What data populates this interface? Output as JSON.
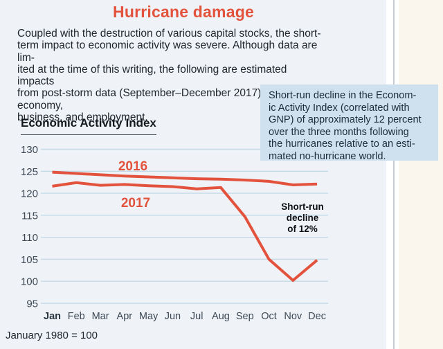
{
  "page": {
    "title": "Hurricane damage",
    "intro": "Coupled with the destruction of various capital stocks, the short-\nterm impact to economic activity was severe. Although data are lim-\nited at the time of this writing, the following are estimated impacts\nfrom post-storm data (September–December 2017) for the economy,\nbusiness, and employment.",
    "footnote": "January 1980 = 100"
  },
  "callout": {
    "text": "Short-run decline in the Econom-\nic Activity Index (correlated with\nGNP) of approximately 12 percent\nover the three months following\nthe hurricanes relative to an esti-\nmated no-hurricane world."
  },
  "colors": {
    "accent": "#e2523c",
    "page_bg": "#eff3f7",
    "cream_bg": "#faf6ee",
    "callout_bg": "#cfe1ee",
    "grid": "#c3d9e8",
    "axis_text": "#3d4854",
    "ink": "#20262c"
  },
  "chart_data": {
    "type": "line",
    "title": "Economic Activity Index",
    "categories": [
      "Jan",
      "Feb",
      "Mar",
      "Apr",
      "May",
      "Jun",
      "Jul",
      "Aug",
      "Sep",
      "Oct",
      "Nov",
      "Dec"
    ],
    "series": [
      {
        "name": "2016",
        "values": [
          124.8,
          124.5,
          124.2,
          123.9,
          123.7,
          123.5,
          123.3,
          123.2,
          123.0,
          122.7,
          121.9,
          122.1
        ]
      },
      {
        "name": "2017",
        "values": [
          121.6,
          122.4,
          121.8,
          122.0,
          121.7,
          121.5,
          121.0,
          121.3,
          114.7,
          105.0,
          100.2,
          104.8
        ]
      }
    ],
    "y_ticks": [
      130,
      125,
      120,
      115,
      110,
      105,
      100,
      95
    ],
    "ylim": [
      95,
      130
    ],
    "grid": true,
    "legend": "inline-labels",
    "annotation": "Short-run\ndecline\nof 12%",
    "footnote": "January 1980 = 100"
  }
}
